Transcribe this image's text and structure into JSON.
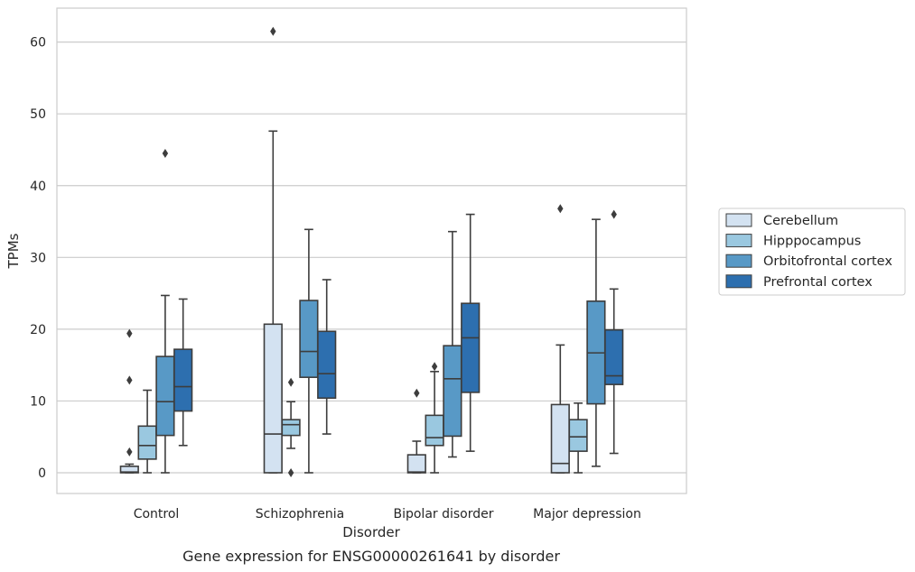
{
  "chart_data": {
    "type": "boxplot",
    "title": "",
    "caption": "Gene expression for ENSG00000261641 by disorder",
    "xlabel": "Disorder",
    "ylabel": "TPMs",
    "ylim": [
      -3,
      65
    ],
    "yticks": [
      0,
      10,
      20,
      30,
      40,
      50,
      60
    ],
    "grid": "horizontal",
    "legend_position": "outside-right",
    "categories": [
      "Control",
      "Schizophrenia",
      "Bipolar disorder",
      "Major depression"
    ],
    "series": [
      {
        "name": "Cerebellum",
        "color": "#d3e2f1",
        "boxes": [
          {
            "whislo": 0,
            "q1": 0,
            "med": 0.1,
            "q3": 0.9,
            "whishi": 1.2,
            "fliers": [
              2.9,
              12.9,
              19.4
            ]
          },
          {
            "whislo": 0,
            "q1": 0,
            "med": 5.4,
            "q3": 20.7,
            "whishi": 47.6,
            "fliers": [
              61.5
            ]
          },
          {
            "whislo": 0,
            "q1": 0,
            "med": 0.1,
            "q3": 2.5,
            "whishi": 4.4,
            "fliers": [
              11.1
            ]
          },
          {
            "whislo": 0,
            "q1": 0,
            "med": 1.3,
            "q3": 9.5,
            "whishi": 17.8,
            "fliers": [
              36.8
            ]
          }
        ]
      },
      {
        "name": "Hipppocampus",
        "color": "#9ac8e0",
        "boxes": [
          {
            "whislo": 0,
            "q1": 1.9,
            "med": 3.8,
            "q3": 6.5,
            "whishi": 11.5,
            "fliers": []
          },
          {
            "whislo": 3.4,
            "q1": 5.2,
            "med": 6.7,
            "q3": 7.4,
            "whishi": 9.9,
            "fliers": [
              0,
              12.6
            ]
          },
          {
            "whislo": 0,
            "q1": 3.8,
            "med": 4.9,
            "q3": 8.0,
            "whishi": 14.1,
            "fliers": [
              14.8
            ]
          },
          {
            "whislo": 0,
            "q1": 3.0,
            "med": 5.0,
            "q3": 7.4,
            "whishi": 9.7,
            "fliers": []
          }
        ]
      },
      {
        "name": "Orbitofrontal cortex",
        "color": "#5899c6",
        "boxes": [
          {
            "whislo": 0,
            "q1": 5.2,
            "med": 9.9,
            "q3": 16.2,
            "whishi": 24.7,
            "fliers": [
              44.5
            ]
          },
          {
            "whislo": 0,
            "q1": 13.3,
            "med": 16.9,
            "q3": 24.0,
            "whishi": 33.9,
            "fliers": []
          },
          {
            "whislo": 2.2,
            "q1": 5.1,
            "med": 13.1,
            "q3": 17.7,
            "whishi": 33.6,
            "fliers": []
          },
          {
            "whislo": 0.9,
            "q1": 9.6,
            "med": 16.7,
            "q3": 23.9,
            "whishi": 35.3,
            "fliers": []
          }
        ]
      },
      {
        "name": "Prefrontal cortex",
        "color": "#2d6faf",
        "boxes": [
          {
            "whislo": 3.8,
            "q1": 8.6,
            "med": 12.0,
            "q3": 17.2,
            "whishi": 24.2,
            "fliers": []
          },
          {
            "whislo": 5.4,
            "q1": 10.4,
            "med": 13.8,
            "q3": 19.7,
            "whishi": 26.9,
            "fliers": []
          },
          {
            "whislo": 3.0,
            "q1": 11.2,
            "med": 18.8,
            "q3": 23.6,
            "whishi": 36.0,
            "fliers": []
          },
          {
            "whislo": 2.7,
            "q1": 12.3,
            "med": 13.5,
            "q3": 19.9,
            "whishi": 25.6,
            "fliers": [
              36.0
            ]
          }
        ]
      }
    ]
  }
}
